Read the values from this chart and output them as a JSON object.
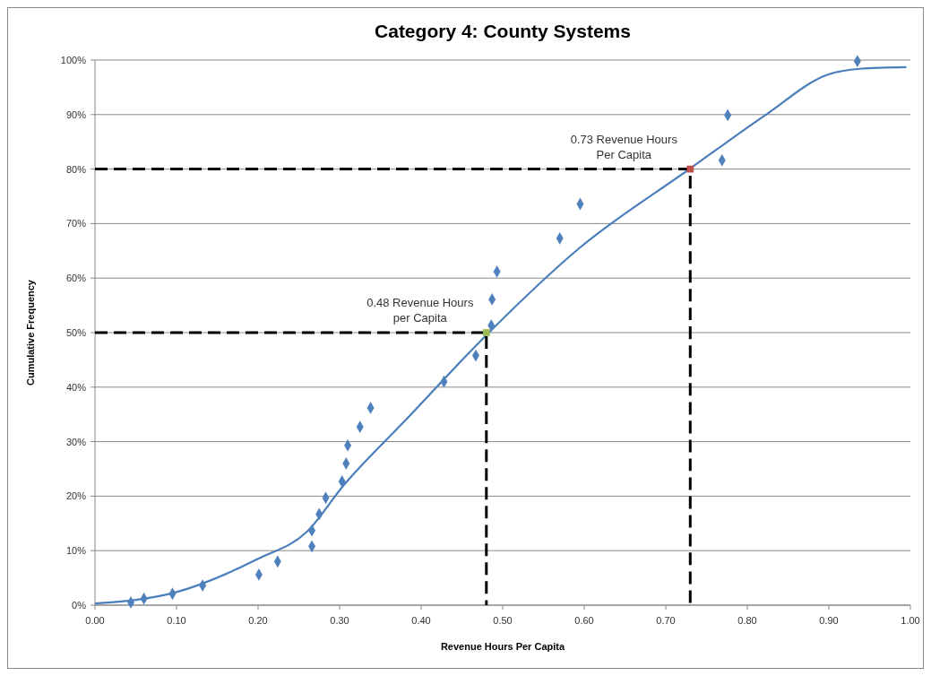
{
  "chart_data": {
    "type": "scatter",
    "title": "Category 4: County Systems",
    "xlabel": "Revenue Hours Per Capita",
    "ylabel": "Cumulative Frequency",
    "xlim": [
      0,
      1
    ],
    "ylim": [
      0,
      100
    ],
    "xticks": [
      {
        "value": 0,
        "label": "0.00"
      },
      {
        "value": 0.1,
        "label": "0.10"
      },
      {
        "value": 0.2,
        "label": "0.20"
      },
      {
        "value": 0.3,
        "label": "0.30"
      },
      {
        "value": 0.4,
        "label": "0.40"
      },
      {
        "value": 0.5,
        "label": "0.50"
      },
      {
        "value": 0.6,
        "label": "0.60"
      },
      {
        "value": 0.7,
        "label": "0.70"
      },
      {
        "value": 0.8,
        "label": "0.80"
      },
      {
        "value": 0.9,
        "label": "0.90"
      },
      {
        "value": 1,
        "label": "1.00"
      }
    ],
    "yticks": [
      {
        "value": 0,
        "label": "0%"
      },
      {
        "value": 10,
        "label": "10%"
      },
      {
        "value": 20,
        "label": "20%"
      },
      {
        "value": 30,
        "label": "30%"
      },
      {
        "value": 40,
        "label": "40%"
      },
      {
        "value": 50,
        "label": "50%"
      },
      {
        "value": 60,
        "label": "60%"
      },
      {
        "value": 70,
        "label": "70%"
      },
      {
        "value": 80,
        "label": "80%"
      },
      {
        "value": 90,
        "label": "90%"
      },
      {
        "value": 100,
        "label": "100%"
      }
    ],
    "grid": "y",
    "series": [
      {
        "type": "line",
        "color": "#4a7ebb",
        "marker": "none",
        "line_style": "solid",
        "x": [
          0,
          0.1,
          0.2,
          0.26,
          0.305,
          0.378,
          0.483,
          0.594,
          0.729,
          0.823,
          0.898,
          0.938,
          0.995
        ],
        "values": [
          0.3,
          2.4,
          8.5,
          13.5,
          22,
          33.5,
          50,
          65.5,
          80,
          90,
          97.3,
          98.4,
          98.7
        ]
      },
      {
        "color": "#4f81bd",
        "marker": "diamond",
        "x": [
          0.044,
          0.06,
          0.095,
          0.132,
          0.201,
          0.224,
          0.266,
          0.266,
          0.275,
          0.283,
          0.303,
          0.308,
          0.31,
          0.325,
          0.338,
          0.428,
          0.467,
          0.486,
          0.487,
          0.493,
          0.57,
          0.595,
          0.769,
          0.776,
          0.935
        ],
        "values": [
          0.5,
          1.2,
          2.1,
          3.6,
          5.6,
          8.0,
          10.8,
          13.7,
          16.7,
          19.7,
          22.7,
          26.0,
          29.3,
          32.7,
          36.2,
          41.0,
          45.8,
          51.3,
          56.1,
          61.2,
          67.3,
          73.6,
          81.6,
          89.9,
          99.8
        ]
      },
      {
        "type": "line",
        "color": "#000000",
        "marker": "none",
        "line_style": "dashed",
        "x": [
          0,
          0.48,
          0.48
        ],
        "values": [
          50,
          50,
          0
        ]
      },
      {
        "type": "line",
        "color": "#000000",
        "marker": "none",
        "line_style": "dashed",
        "x": [
          0,
          0.73,
          0.73
        ],
        "values": [
          80,
          80,
          0
        ]
      },
      {
        "type": "scatter",
        "color": "#9bbb59",
        "marker": "square",
        "x": [
          0.48
        ],
        "values": [
          50
        ]
      },
      {
        "type": "scatter",
        "color": "#c0504d",
        "marker": "square",
        "x": [
          0.73
        ],
        "values": [
          80
        ]
      }
    ],
    "annotations": [
      {
        "text": "0.48 Revenue Hours\nper Capita",
        "x": 0.48,
        "y": 50
      },
      {
        "text": "0.73 Revenue Hours\nPer Capita",
        "x": 0.73,
        "y": 80
      }
    ]
  }
}
